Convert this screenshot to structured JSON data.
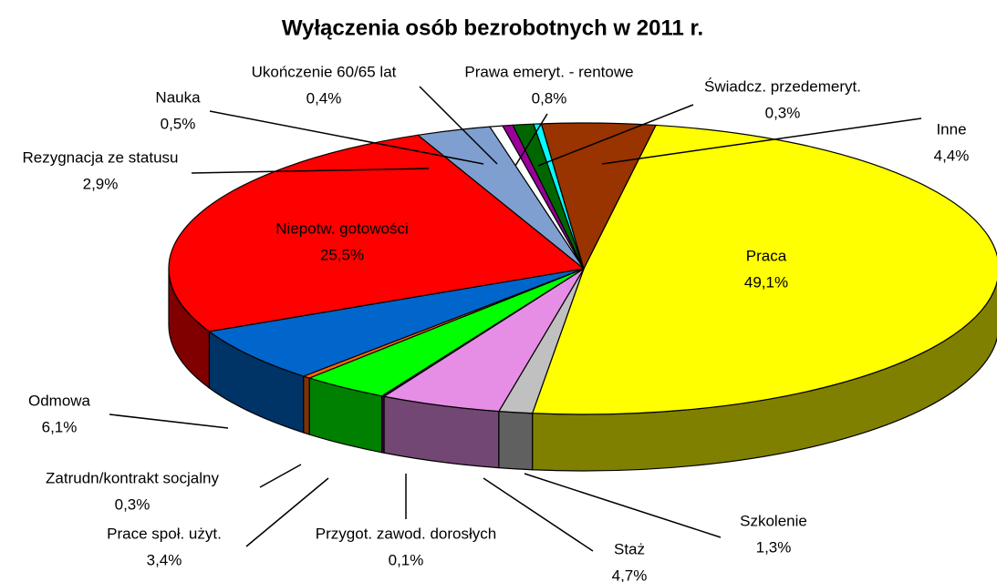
{
  "chart_data": {
    "type": "pie",
    "title": "Wyłączenia osób bezrobotnych w 2011 r.",
    "categories": [
      "Praca",
      "Szkolenie",
      "Staż",
      "Przygot. zawod. dorosłych",
      "Prace społ. użyt.",
      "Zatrudn/kontrakt socjalny",
      "Odmowa",
      "Niepotw. gotowości",
      "Rezygnacja ze statusu",
      "Nauka",
      "Ukończenie 60/65 lat",
      "Prawa emeryt. - rentowe",
      "Świadcz. przedemeryt.",
      "Inne"
    ],
    "values": [
      49.1,
      1.3,
      4.7,
      0.1,
      3.4,
      0.3,
      6.1,
      25.5,
      2.9,
      0.5,
      0.4,
      0.8,
      0.3,
      4.4
    ],
    "value_labels": [
      "49,1%",
      "1,3%",
      "4,7%",
      "0,1%",
      "3,4%",
      "0,3%",
      "6,1%",
      "25,5%",
      "2,9%",
      "0,5%",
      "0,4%",
      "0,8%",
      "0,3%",
      "4,4%"
    ],
    "colors": [
      "#ffff00",
      "#c0c0c0",
      "#e68ee6",
      "#800080",
      "#00ff00",
      "#ff6600",
      "#0066cc",
      "#ff0000",
      "#7f9fd0",
      "#ffffff",
      "#990099",
      "#006600",
      "#00ffff",
      "#993300"
    ]
  }
}
